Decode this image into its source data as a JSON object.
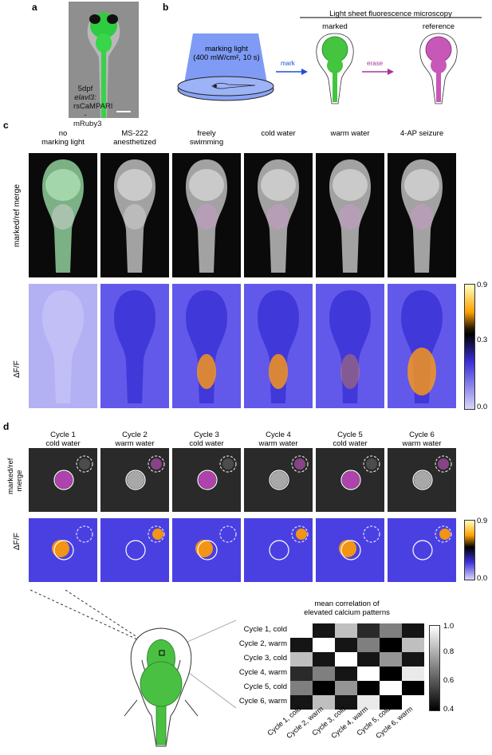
{
  "panels": {
    "a": "a",
    "b": "b",
    "c": "c",
    "d": "d"
  },
  "a": {
    "label_lines": [
      "5dpf",
      "elavl3:",
      "rsCaMPARI",
      "-mRuby3"
    ]
  },
  "b": {
    "lsfm_title": "Light sheet fluorescence microscopy",
    "marking_light_l1": "marking light",
    "marking_light_l2": "(400 mW/cm², 10 s)",
    "mark": "mark",
    "erase": "erase",
    "marked": "marked",
    "reference": "reference"
  },
  "c": {
    "columns": [
      {
        "l1": "no",
        "l2": "marking light"
      },
      {
        "l1": "MS-222",
        "l2": "anesthetized"
      },
      {
        "l1": "freely",
        "l2": "swimming"
      },
      {
        "l1": "cold water",
        "l2": ""
      },
      {
        "l1": "warm water",
        "l2": ""
      },
      {
        "l1": "4-AP seizure",
        "l2": ""
      }
    ],
    "row1": "marked/ref merge",
    "row2": "ΔF/F",
    "colorbar": {
      "max": "0.9",
      "mid": "0.3",
      "min": "0.0",
      "colors": [
        "#ffffc0",
        "#ffa000",
        "#000000",
        "#3b2fd8",
        "#d8d6fa"
      ]
    }
  },
  "d": {
    "columns": [
      {
        "l1": "Cycle 1",
        "l2": "cold water"
      },
      {
        "l1": "Cycle 2",
        "l2": "warm water"
      },
      {
        "l1": "Cycle 3",
        "l2": "cold water"
      },
      {
        "l1": "Cycle 4",
        "l2": "warm water"
      },
      {
        "l1": "Cycle 5",
        "l2": "cold water"
      },
      {
        "l1": "Cycle 6",
        "l2": "warm water"
      }
    ],
    "row1_l1": "marked/ref",
    "row1_l2": "merge",
    "row2": "ΔF/F",
    "colorbar": {
      "max": "0.9",
      "min": "0.0"
    },
    "corr_title_l1": "mean correlation of",
    "corr_title_l2": "elevated calcium patterns",
    "corr_rows": [
      "Cycle 1, cold",
      "Cycle 2, warm",
      "Cycle 3, cold",
      "Cycle 4, warm",
      "Cycle 5, cold",
      "Cycle 6, warm"
    ],
    "corr_cbar": {
      "ticks": [
        "1.0",
        "0.8",
        "0.6",
        "0.4"
      ]
    }
  },
  "chart_data": {
    "type": "heatmap",
    "title": "mean correlation of elevated calcium patterns",
    "rows": [
      "Cycle 1, cold",
      "Cycle 2, warm",
      "Cycle 3, cold",
      "Cycle 4, warm",
      "Cycle 5, cold",
      "Cycle 6, warm"
    ],
    "cols": [
      "Cycle 1, cold",
      "Cycle 2, warm",
      "Cycle 3, cold",
      "Cycle 4, warm",
      "Cycle 5, cold",
      "Cycle 6, warm"
    ],
    "values": [
      [
        1.0,
        0.45,
        0.85,
        0.5,
        0.7,
        0.45
      ],
      [
        0.45,
        1.0,
        0.45,
        0.7,
        0.4,
        0.85
      ],
      [
        0.85,
        0.45,
        1.0,
        0.45,
        0.75,
        0.45
      ],
      [
        0.5,
        0.7,
        0.45,
        1.0,
        0.4,
        0.95
      ],
      [
        0.7,
        0.4,
        0.75,
        0.4,
        1.0,
        0.4
      ],
      [
        0.45,
        0.85,
        0.45,
        0.95,
        0.4,
        1.0
      ]
    ],
    "vmin": 0.4,
    "vmax": 1.0
  }
}
